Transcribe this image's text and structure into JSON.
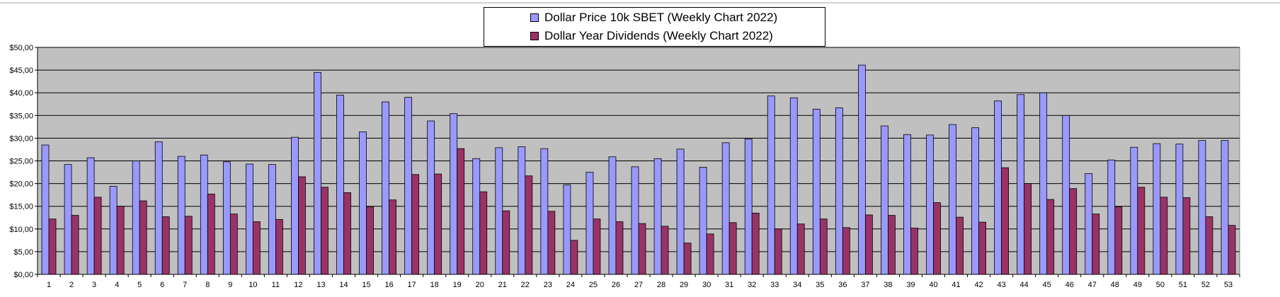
{
  "colors": {
    "plot_background": "#c0c0c0",
    "gridline": "#000000",
    "price_bar": "#9999ff",
    "dividend_bar": "#993366"
  },
  "legend": {
    "price_label": "Dollar Price 10k SBET (Weekly Chart 2022)",
    "dividend_label": "Dollar Year Dividends (Weekly Chart 2022)"
  },
  "chart_data": {
    "type": "bar",
    "categories": [
      "1",
      "2",
      "3",
      "4",
      "5",
      "6",
      "7",
      "8",
      "9",
      "10",
      "11",
      "12",
      "13",
      "14",
      "15",
      "16",
      "17",
      "18",
      "19",
      "20",
      "21",
      "22",
      "23",
      "24",
      "25",
      "26",
      "27",
      "28",
      "29",
      "30",
      "31",
      "32",
      "33",
      "34",
      "35",
      "36",
      "37",
      "38",
      "39",
      "40",
      "41",
      "42",
      "43",
      "44",
      "45",
      "46",
      "47",
      "48",
      "49",
      "50",
      "51",
      "52",
      "53"
    ],
    "series": [
      {
        "name": "Dollar Price 10k SBET (Weekly Chart 2022)",
        "values": [
          28.5,
          24.2,
          25.7,
          19.4,
          25,
          29.2,
          26,
          26.3,
          24.8,
          24.3,
          24.2,
          30.2,
          44.5,
          39.5,
          31.4,
          38,
          39,
          33.8,
          35.4,
          25.5,
          27.9,
          28.1,
          27.7,
          19.7,
          22.5,
          25.9,
          23.7,
          25.5,
          27.6,
          23.6,
          29,
          29.8,
          39.3,
          38.9,
          36.4,
          36.7,
          46.1,
          32.7,
          30.8,
          30.7,
          33,
          32.3,
          38.2,
          39.6,
          40,
          35,
          22.2,
          25.2,
          28,
          28.8,
          28.7,
          29.5,
          29.5
        ]
      },
      {
        "name": "Dollar Year Dividends (Weekly Chart 2022)",
        "values": [
          12.2,
          13,
          17,
          15,
          16.2,
          12.7,
          12.8,
          17.7,
          13.3,
          11.6,
          12.1,
          21.5,
          19.2,
          18,
          14.9,
          16.4,
          22,
          22.1,
          27.7,
          18.2,
          14,
          21.7,
          13.9,
          7.5,
          12.2,
          11.6,
          11.2,
          10.6,
          6.9,
          8.9,
          11.4,
          13.5,
          10,
          11.1,
          12.2,
          10.3,
          13.1,
          13,
          10.2,
          15.8,
          12.6,
          11.5,
          23.5,
          20,
          16.5,
          18.9,
          13.3,
          14.9,
          19.2,
          17,
          16.9,
          12.7,
          10.8
        ]
      }
    ],
    "ylim": [
      0,
      50
    ],
    "yticks": [
      "$0,00",
      "$5,00",
      "$10,00",
      "$15,00",
      "$20,00",
      "$25,00",
      "$30,00",
      "$35,00",
      "$40,00",
      "$45,00",
      "$50,00"
    ],
    "grid": true,
    "legend_position": "top-center"
  }
}
